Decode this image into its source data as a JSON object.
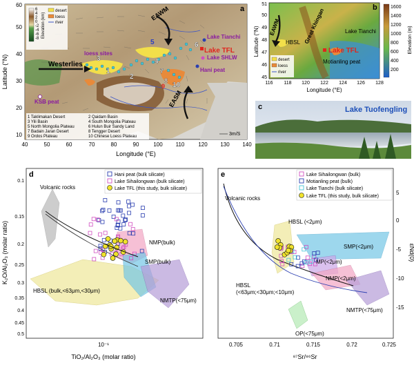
{
  "panel_a": {
    "letter": "a",
    "xlabel": "Longitude (°E)",
    "ylabel": "Latitude (°N)",
    "xticks": [
      "40",
      "50",
      "60",
      "70",
      "80",
      "90",
      "100",
      "110",
      "120",
      "130",
      "140"
    ],
    "yticks": [
      "10",
      "20",
      "30",
      "40",
      "50",
      "60"
    ],
    "legend_elev_title": "Elevation (km)",
    "legend_elev_ticks": [
      "6",
      "4",
      "2",
      "0",
      "-2",
      "-4",
      "-6",
      "-8"
    ],
    "legend_items": [
      "desert",
      "loess",
      "river"
    ],
    "labels": {
      "westerlies": "Westerlies",
      "eawm": "EAWM",
      "easm": "EASM",
      "loess_sites": "loess sites",
      "lake_tianchi": "Lake Tianchi",
      "lake_tfl": "Lake TFL",
      "lake_shlw": "Lake SHLW",
      "hani_peat": "Hani peat",
      "ksb_peat": "KSB peat",
      "wind_scale": "3m/S"
    },
    "region_numbers": [
      "1",
      "2",
      "3",
      "4",
      "5",
      "6",
      "7",
      "8",
      "9",
      "10"
    ],
    "region_list": [
      "1 Taklimakan Desert",
      "2 Qaidam Basin",
      "3 Yili Basin",
      "4 South Mongolia Plateau",
      "5 North Mongolia Plateau",
      "6 Hulun Buir Sandy Land",
      "7 Badain Jaran Desert",
      "8 Tengger Desert",
      "9 Ordos Plateau",
      "10 Chinese Loess Plateau"
    ]
  },
  "panel_b": {
    "letter": "b",
    "xlabel": "Longitude (°E)",
    "ylabel": "Latitude (°N)",
    "xticks": [
      "116",
      "118",
      "120",
      "122",
      "124",
      "126",
      "128"
    ],
    "yticks": [
      "45",
      "46",
      "47",
      "48",
      "49",
      "50",
      "51"
    ],
    "colorbar_title": "Elevation (m)",
    "colorbar_ticks": [
      "1600",
      "1400",
      "1200",
      "1000",
      "800",
      "600",
      "400",
      "200"
    ],
    "labels": {
      "eawm": "EAWM",
      "hbsl": "HBSL",
      "great_khingan": "Great Khingan",
      "lake_tianchi": "Lake Tianchi",
      "lake_tfl": "Lake TFL",
      "motianling": "Motianling peat"
    },
    "legend_items": [
      "desert",
      "loess",
      "river"
    ]
  },
  "panel_c": {
    "letter": "c",
    "title": "Lake Tuofengling"
  },
  "panel_d": {
    "letter": "d",
    "xlabel": "TiO₂/Al₂O₃ (molar ratio)",
    "ylabel": "K₂O/Al₂O₃ (molar ratio)",
    "xtick": "10⁻¹",
    "yticks": [
      "0.1",
      "0.15",
      "0.2",
      "0.25",
      "0.3",
      "0.35",
      "0.4",
      "0.45",
      "0.5"
    ],
    "legend": [
      "Hani peat (bulk silicate)",
      "Lake Sihailongwan (bulk silicate)",
      "Lake TFL (this study, bulk silicate)"
    ],
    "labels": {
      "volcanic": "Volcanic rocks",
      "nmp": "NMP(bulk)",
      "smp": "SMP(bulk)",
      "hbsl": "HBSL (bulk,<63μm,<30μm)",
      "nmtp": "NMTP(<75μm)"
    }
  },
  "panel_e": {
    "letter": "e",
    "xlabel": "⁸⁷Sr/⁸⁶Sr",
    "ylabel": "εNd(0)",
    "xticks": [
      "0.705",
      "0.71",
      "0.715",
      "0.72",
      "0.725"
    ],
    "yticks": [
      "5",
      "0",
      "-5",
      "-10",
      "-15"
    ],
    "legend": [
      "Lake Sihailongwan (bulk)",
      "Motianling peat (bulk)",
      "Lake Tianchi (bulk silicate)",
      "Lake TFL (this study, bulk silicate)"
    ],
    "labels": {
      "volcanic": "Volcanic rocks",
      "hbsl_fine": "HBSL (<2μm)",
      "smp": "SMP(<2μm)",
      "mp": "MP(<2μm)",
      "nmp": "NMP(<2μm)",
      "hbsl_multi_1": "HBSL",
      "hbsl_multi_2": "(<63μm;<30μm;<10μm)",
      "nmtp": "NMTP(<75μm)",
      "op": "OP(<75μm)"
    }
  },
  "colors": {
    "desert": "#f2df4a",
    "loess": "#e88a3a",
    "river": "#3b55c7",
    "tfl_marker": "#f0e22c",
    "hani": "#2b3fb0",
    "shlw": "#d04fc0",
    "tianchi": "#45c6d8",
    "motianling": "#2b3fb0",
    "volcanic_fill": "#b8b8b8",
    "nmp_fill": "#f3a6c4",
    "smp_fill": "#74c7e6",
    "hbsl_fill": "#efe9a0",
    "nmtp_fill": "#b69ed8",
    "op_fill": "#b9ecb9",
    "mp_fill": "#cda7e8"
  }
}
